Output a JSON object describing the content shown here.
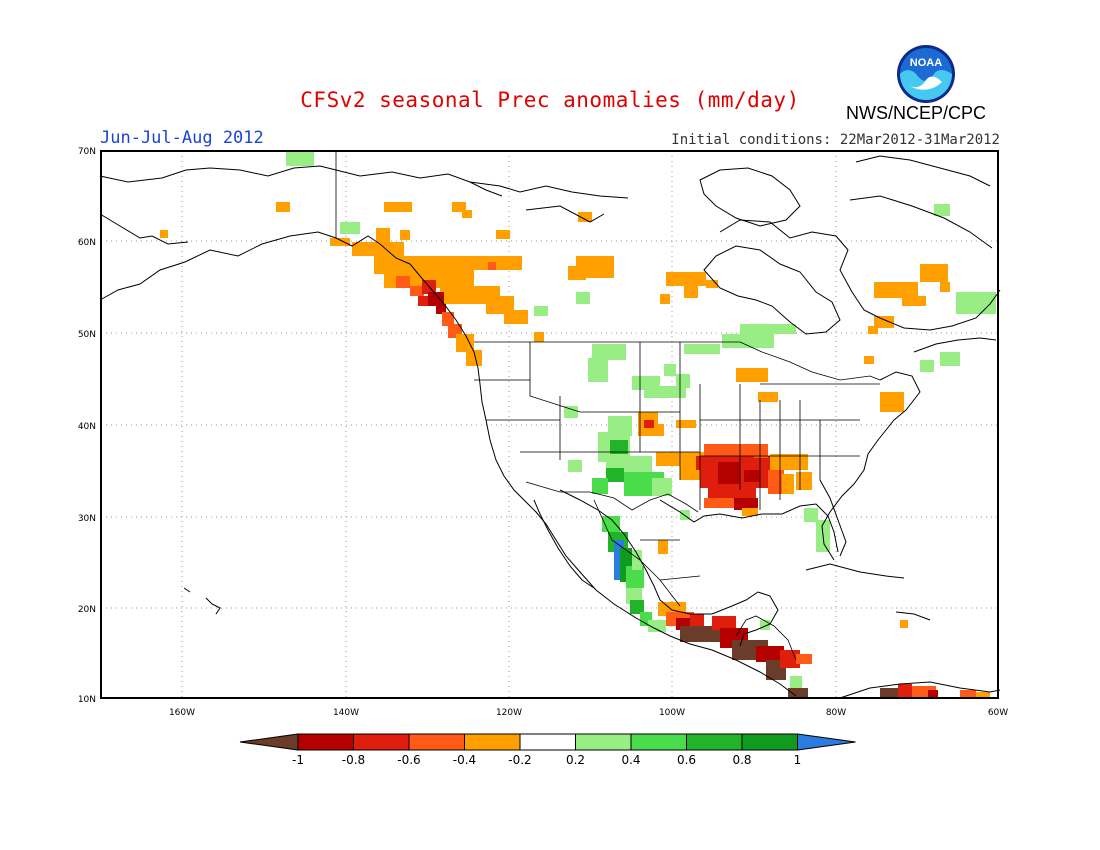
{
  "title": "CFSv2 seasonal Prec anomalies (mm/day)",
  "season": "Jun-Jul-Aug 2012",
  "initial_conditions": "Initial conditions: 22Mar2012-31Mar2012",
  "agency": "NWS/NCEP/CPC",
  "logo_text": "NOAA",
  "map": {
    "lat_labels": [
      "70N",
      "60N",
      "50N",
      "40N",
      "30N",
      "20N",
      "10N"
    ],
    "lon_labels": [
      "160W",
      "140W",
      "120W",
      "100W",
      "80W",
      "60W"
    ],
    "grid": "dotted"
  },
  "colorbar": {
    "labels": [
      "-1",
      "-0.8",
      "-0.6",
      "-0.4",
      "-0.2",
      "0.2",
      "0.4",
      "0.6",
      "0.8",
      "1"
    ],
    "colors": [
      "#6b3c2a",
      "#b50000",
      "#e01e0e",
      "#ff5a16",
      "#ffa000",
      "#ffffff",
      "#98ee84",
      "#4adc4a",
      "#22b428",
      "#0f9b1e",
      "#2a7dde"
    ]
  },
  "colors": {
    "title": "#e00000",
    "season": "#1a44d8",
    "map_line": "#000000",
    "grid": "#9a9a9a"
  }
}
